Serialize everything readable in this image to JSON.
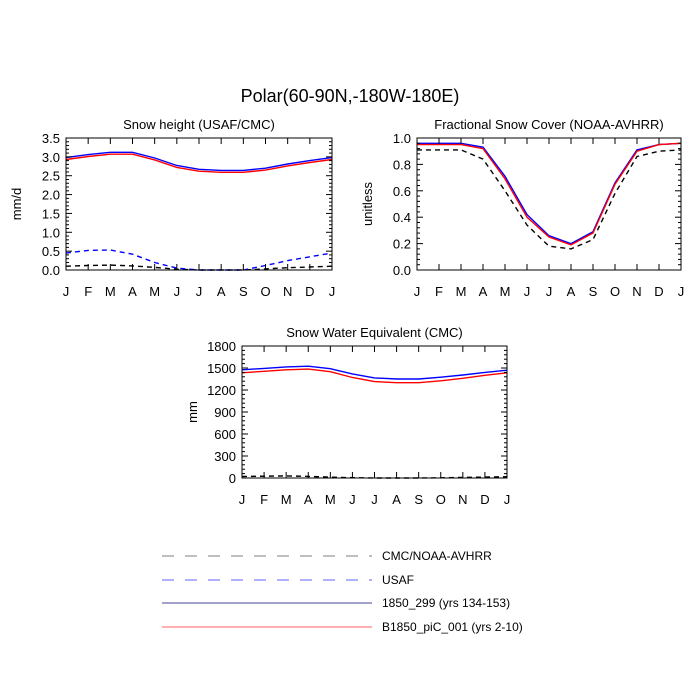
{
  "figure": {
    "title": "Polar(60-90N,-180W-180E)"
  },
  "colors": {
    "obs": "#000000",
    "usaf": "#0000ff",
    "case1": "#0000ff",
    "case2": "#ff0000",
    "legend_obs": "#999999",
    "legend_usaf": "#8080ff",
    "legend_case1": "#6a6aaa",
    "legend_case2": "#ff8080"
  },
  "legend": {
    "entries": [
      {
        "label": "CMC/NOAA-AVHRR",
        "style": "dashed",
        "color_key": "legend_obs"
      },
      {
        "label": "USAF",
        "style": "dashed",
        "color_key": "legend_usaf"
      },
      {
        "label": "1850_299 (yrs 134-153)",
        "style": "solid",
        "color_key": "legend_case1"
      },
      {
        "label": "B1850_piC_001 (yrs 2-10)",
        "style": "solid",
        "color_key": "legend_case2"
      }
    ]
  },
  "chart_data": [
    {
      "id": "snow-height",
      "type": "line",
      "title": "Snow height (USAF/CMC)",
      "xlabel": "",
      "ylabel": "mm/d",
      "categories": [
        "J",
        "F",
        "M",
        "A",
        "M",
        "J",
        "J",
        "A",
        "S",
        "O",
        "N",
        "D",
        "J"
      ],
      "ylim": [
        0,
        3.5
      ],
      "yticks": [
        0.0,
        0.5,
        1.0,
        1.5,
        2.0,
        2.5,
        3.0,
        3.5
      ],
      "ytick_labels": [
        "0.0",
        "0.5",
        "1.0",
        "1.5",
        "2.0",
        "2.5",
        "3.0",
        "3.5"
      ],
      "series": [
        {
          "name": "CMC/NOAA-AVHRR",
          "style": "dashed",
          "color_key": "obs",
          "values": [
            0.1,
            0.12,
            0.13,
            0.11,
            0.07,
            0.02,
            0.0,
            0.0,
            0.0,
            0.03,
            0.06,
            0.08,
            0.1
          ]
        },
        {
          "name": "USAF",
          "style": "dashed",
          "color_key": "usaf",
          "values": [
            0.45,
            0.52,
            0.53,
            0.42,
            0.2,
            0.05,
            0.0,
            0.0,
            0.0,
            0.12,
            0.25,
            0.35,
            0.45
          ]
        },
        {
          "name": "1850_299 (yrs 134-153)",
          "style": "solid",
          "color_key": "case1",
          "values": [
            2.98,
            3.06,
            3.12,
            3.12,
            2.97,
            2.77,
            2.67,
            2.64,
            2.64,
            2.7,
            2.81,
            2.9,
            2.98
          ]
        },
        {
          "name": "B1850_piC_001 (yrs 2-10)",
          "style": "solid",
          "color_key": "case2",
          "values": [
            2.93,
            3.01,
            3.07,
            3.07,
            2.92,
            2.72,
            2.62,
            2.59,
            2.59,
            2.65,
            2.76,
            2.85,
            2.93
          ]
        }
      ]
    },
    {
      "id": "fractional-snow-cover",
      "type": "line",
      "title": "Fractional Snow Cover (NOAA-AVHRR)",
      "xlabel": "",
      "ylabel": "unitless",
      "categories": [
        "J",
        "F",
        "M",
        "A",
        "M",
        "J",
        "J",
        "A",
        "S",
        "O",
        "N",
        "D",
        "J"
      ],
      "ylim": [
        0,
        1.0
      ],
      "yticks": [
        0.0,
        0.2,
        0.4,
        0.6,
        0.8,
        1.0
      ],
      "ytick_labels": [
        "0.0",
        "0.2",
        "0.4",
        "0.6",
        "0.8",
        "1.0"
      ],
      "series": [
        {
          "name": "CMC/NOAA-AVHRR",
          "style": "dashed",
          "color_key": "obs",
          "values": [
            0.91,
            0.91,
            0.91,
            0.84,
            0.6,
            0.34,
            0.18,
            0.16,
            0.23,
            0.58,
            0.86,
            0.9,
            0.91
          ]
        },
        {
          "name": "1850_299 (yrs 134-153)",
          "style": "solid",
          "color_key": "case1",
          "values": [
            0.96,
            0.96,
            0.96,
            0.93,
            0.71,
            0.42,
            0.26,
            0.2,
            0.29,
            0.66,
            0.91,
            0.95,
            0.96
          ]
        },
        {
          "name": "B1850_piC_001 (yrs 2-10)",
          "style": "solid",
          "color_key": "case2",
          "values": [
            0.95,
            0.95,
            0.95,
            0.92,
            0.69,
            0.4,
            0.25,
            0.19,
            0.28,
            0.65,
            0.9,
            0.95,
            0.96
          ]
        }
      ]
    },
    {
      "id": "snow-water-equivalent",
      "type": "line",
      "title": "Snow Water Equivalent (CMC)",
      "xlabel": "",
      "ylabel": "mm",
      "categories": [
        "J",
        "F",
        "M",
        "A",
        "M",
        "J",
        "J",
        "A",
        "S",
        "O",
        "N",
        "D",
        "J"
      ],
      "ylim": [
        0,
        1800
      ],
      "yticks": [
        0,
        300,
        600,
        900,
        1200,
        1500,
        1800
      ],
      "ytick_labels": [
        "0",
        "300",
        "600",
        "900",
        "1200",
        "1500",
        "1800"
      ],
      "series": [
        {
          "name": "CMC/NOAA-AVHRR",
          "style": "dashed",
          "color_key": "obs",
          "values": [
            20,
            25,
            28,
            22,
            12,
            4,
            0,
            0,
            0,
            3,
            8,
            12,
            18
          ]
        },
        {
          "name": "1850_299 (yrs 134-153)",
          "style": "solid",
          "color_key": "case1",
          "values": [
            1475,
            1495,
            1515,
            1525,
            1490,
            1420,
            1365,
            1350,
            1350,
            1375,
            1405,
            1440,
            1470
          ]
        },
        {
          "name": "B1850_piC_001 (yrs 2-10)",
          "style": "solid",
          "color_key": "case2",
          "values": [
            1435,
            1455,
            1475,
            1485,
            1450,
            1370,
            1315,
            1300,
            1300,
            1325,
            1360,
            1400,
            1435
          ]
        }
      ]
    }
  ]
}
